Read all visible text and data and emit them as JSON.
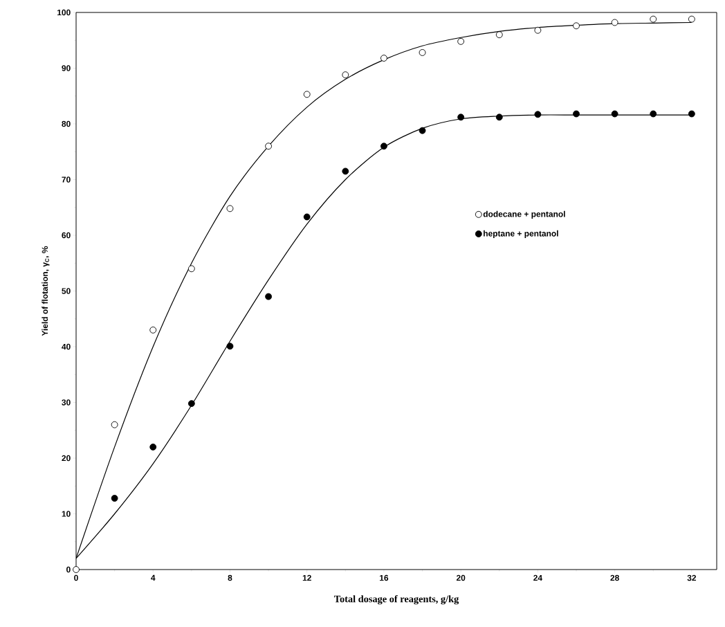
{
  "chart_data": {
    "type": "scatter",
    "xlabel": "Total dosage of reagents, g/kg",
    "ylabel": "Yield of flotation, γ$_{C}$, %",
    "xlim": [
      0,
      33.3
    ],
    "ylim": [
      0,
      100
    ],
    "xticks": [
      0,
      4,
      8,
      12,
      16,
      20,
      24,
      28,
      32
    ],
    "yticks": [
      0,
      10,
      20,
      30,
      40,
      50,
      60,
      70,
      80,
      90,
      100
    ],
    "grid": false,
    "legend": "right",
    "series": [
      {
        "name": "dodecane + pentanol",
        "marker": "circle",
        "color": "#ffffff",
        "x": [
          0,
          2,
          4,
          6,
          8,
          10,
          12,
          14,
          16,
          18,
          20,
          22,
          24,
          26,
          28,
          30,
          32
        ],
        "values": [
          0,
          26,
          43,
          54,
          64.8,
          76,
          85.3,
          88.8,
          91.8,
          92.8,
          94.8,
          96,
          96.8,
          97.6,
          98.2,
          98.8,
          98.8
        ]
      },
      {
        "name": "heptane + pentanol",
        "marker": "circle",
        "color": "#000000",
        "x": [
          2,
          4,
          6,
          8,
          10,
          12,
          14,
          16,
          18,
          20,
          22,
          24,
          26,
          28,
          30,
          32
        ],
        "values": [
          12.8,
          22,
          29.8,
          40.1,
          49,
          63.3,
          71.5,
          76,
          78.8,
          81.2,
          81.2,
          81.7,
          81.8,
          81.8,
          81.8,
          81.8
        ]
      },
      {
        "type": "line",
        "marker": "none",
        "color": "#000000",
        "line_style": "solid",
        "x": [
          0,
          2,
          4,
          6,
          8,
          10,
          12,
          14,
          16,
          18,
          20,
          22,
          24,
          26,
          28,
          30,
          32
        ],
        "values": [
          2,
          22,
          40,
          55,
          67,
          76,
          83,
          88,
          91.5,
          94,
          95.5,
          96.6,
          97.3,
          97.7,
          98,
          98.1,
          98.2
        ]
      },
      {
        "type": "line",
        "marker": "none",
        "color": "#000000",
        "line_style": "solid",
        "x": [
          0,
          2,
          4,
          6,
          8,
          10,
          12,
          14,
          16,
          18,
          20,
          22,
          24,
          26,
          28,
          30,
          32
        ],
        "values": [
          2,
          10,
          19,
          29.5,
          41,
          52,
          62,
          70,
          75.8,
          79.2,
          80.9,
          81.4,
          81.6,
          81.6,
          81.6,
          81.6,
          81.6
        ]
      }
    ]
  }
}
